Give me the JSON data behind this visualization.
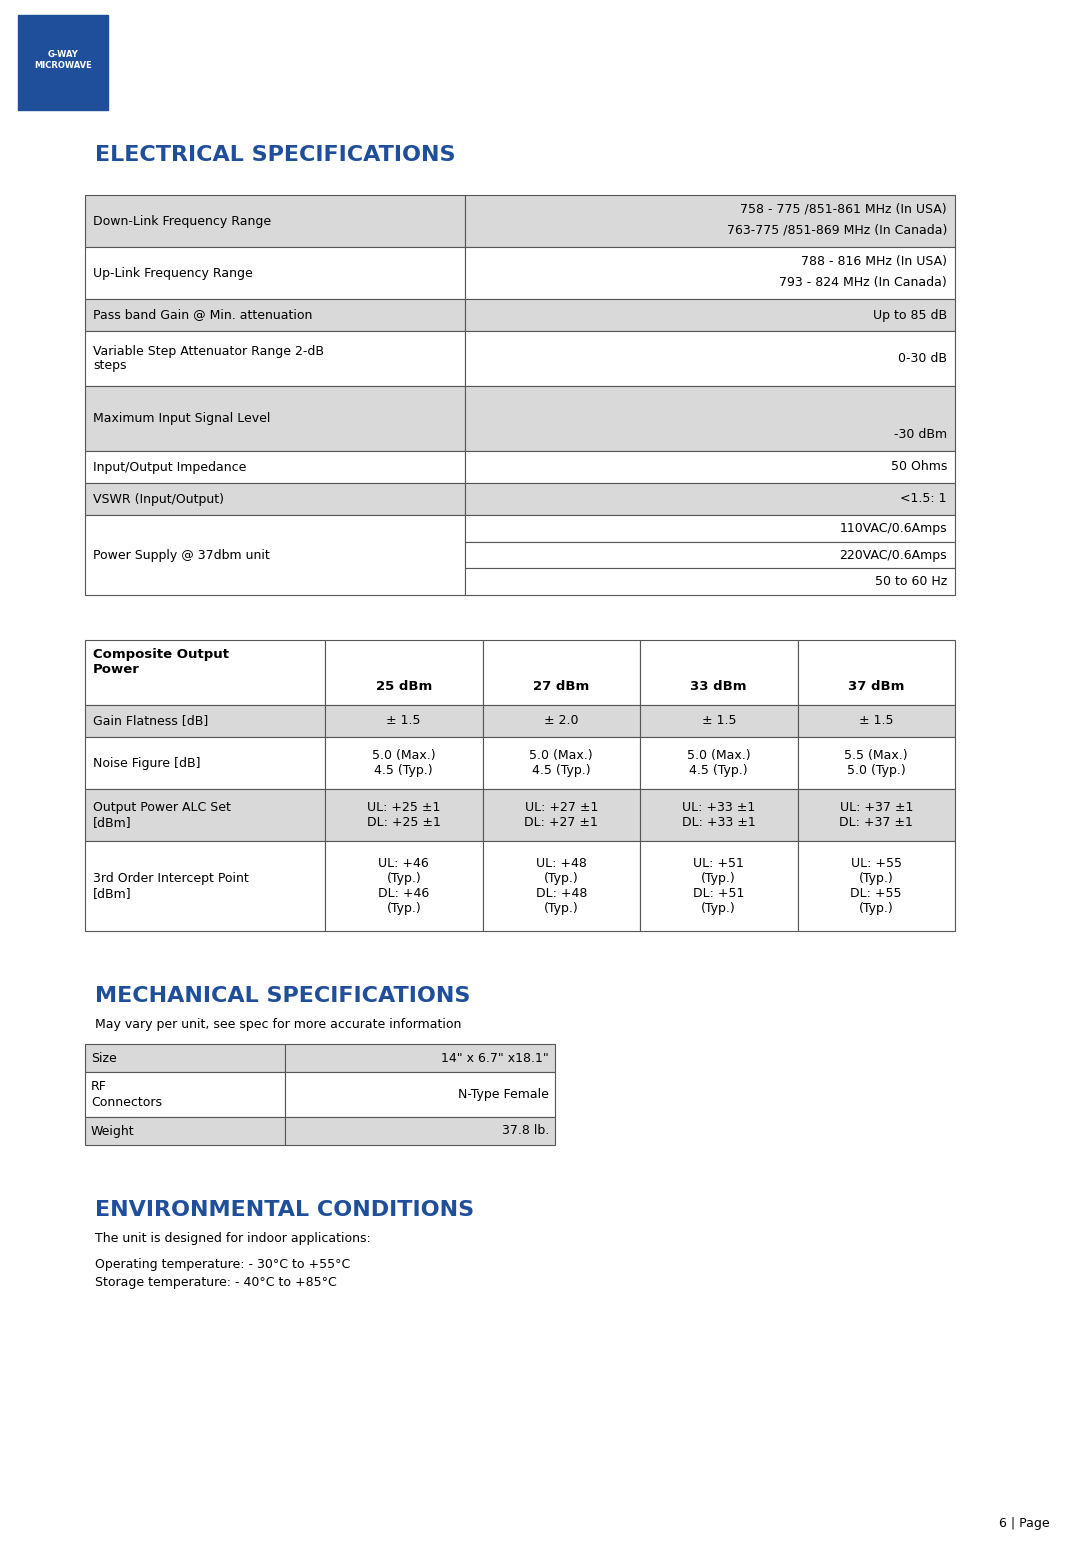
{
  "title_electrical": "ELECTRICAL SPECIFICATIONS",
  "title_mechanical": "MECHANICAL SPECIFICATIONS",
  "title_environmental": "ENVIRONMENTAL CONDITIONS",
  "title_color": "#1F4E9A",
  "header_bg": "#D9D9D9",
  "white_bg": "#FFFFFF",
  "border_color": "#555555",
  "text_color": "#000000",
  "page_label": "6 | Page",
  "elec_table": {
    "rows": [
      {
        "label": "Down-Link Frequency Range",
        "value": "758 - 775 /851-861 MHz (In USA)\n763-775 /851-869 MHz (In Canada)",
        "align": "right"
      },
      {
        "label": "Up-Link Frequency Range",
        "value": "788 - 816 MHz (In USA)\n793 - 824 MHz (In Canada)",
        "align": "right"
      },
      {
        "label": "Pass band Gain @ Min. attenuation",
        "value": "Up to 85 dB",
        "align": "right"
      },
      {
        "label": "Variable Step Attenuator Range 2-dB\nsteps",
        "value": "0-30 dB",
        "align": "right"
      },
      {
        "label": "Maximum Input Signal Level",
        "value": "-30 dBm",
        "align": "right",
        "tall": true
      },
      {
        "label": "Input/Output Impedance",
        "value": "50 Ohms",
        "align": "right"
      },
      {
        "label": "VSWR (Input/Output)",
        "value": "<1.5: 1",
        "align": "right"
      },
      {
        "label": "Power Supply @ 37dbm unit",
        "value": "110VAC/0.6Amps\n220VAC/0.6Amps\n50 to 60 Hz",
        "align": "right",
        "multi": true
      }
    ]
  },
  "comp_table": {
    "header_col0": "Composite Output\nPower",
    "headers": [
      "25 dBm",
      "27 dBm",
      "33 dBm",
      "37 dBm"
    ],
    "rows": [
      {
        "label": "Gain Flatness [dB]",
        "values": [
          "± 1.5",
          "± 2.0",
          "± 1.5",
          "± 1.5"
        ],
        "shaded": true
      },
      {
        "label": "Noise Figure [dB]",
        "values": [
          "5.0 (Max.)\n4.5 (Typ.)",
          "5.0 (Max.)\n4.5 (Typ.)",
          "5.0 (Max.)\n4.5 (Typ.)",
          "5.5 (Max.)\n5.0 (Typ.)"
        ],
        "shaded": false
      },
      {
        "label": "Output Power ALC Set\n[dBm]",
        "values": [
          "UL: +25 ±1\nDL: +25 ±1",
          "UL: +27 ±1\nDL: +27 ±1",
          "UL: +33 ±1\nDL: +33 ±1",
          "UL: +37 ±1\nDL: +37 ±1"
        ],
        "shaded": true
      },
      {
        "label": "3rd Order Intercept Point\n[dBm]",
        "values": [
          "UL: +46\n(Typ.)\nDL: +46\n(Typ.)",
          "UL: +48\n(Typ.)\nDL: +48\n(Typ.)",
          "UL: +51\n(Typ.)\nDL: +51\n(Typ.)",
          "UL: +55\n(Typ.)\nDL: +55\n(Typ.)"
        ],
        "shaded": false
      }
    ]
  },
  "mech_note": "May vary per unit, see spec for more accurate information",
  "mech_table": {
    "rows": [
      {
        "label": "Size",
        "value": "14\" x 6.7\" x18.1\""
      },
      {
        "label": "RF\nConnectors",
        "value": "N-Type Female"
      },
      {
        "label": "Weight",
        "value": "37.8 lb."
      }
    ]
  },
  "env_text": [
    "The unit is designed for indoor applications:",
    "Operating temperature: - 30°C to +55°C",
    "Storage temperature: - 40°C to +85°C"
  ]
}
